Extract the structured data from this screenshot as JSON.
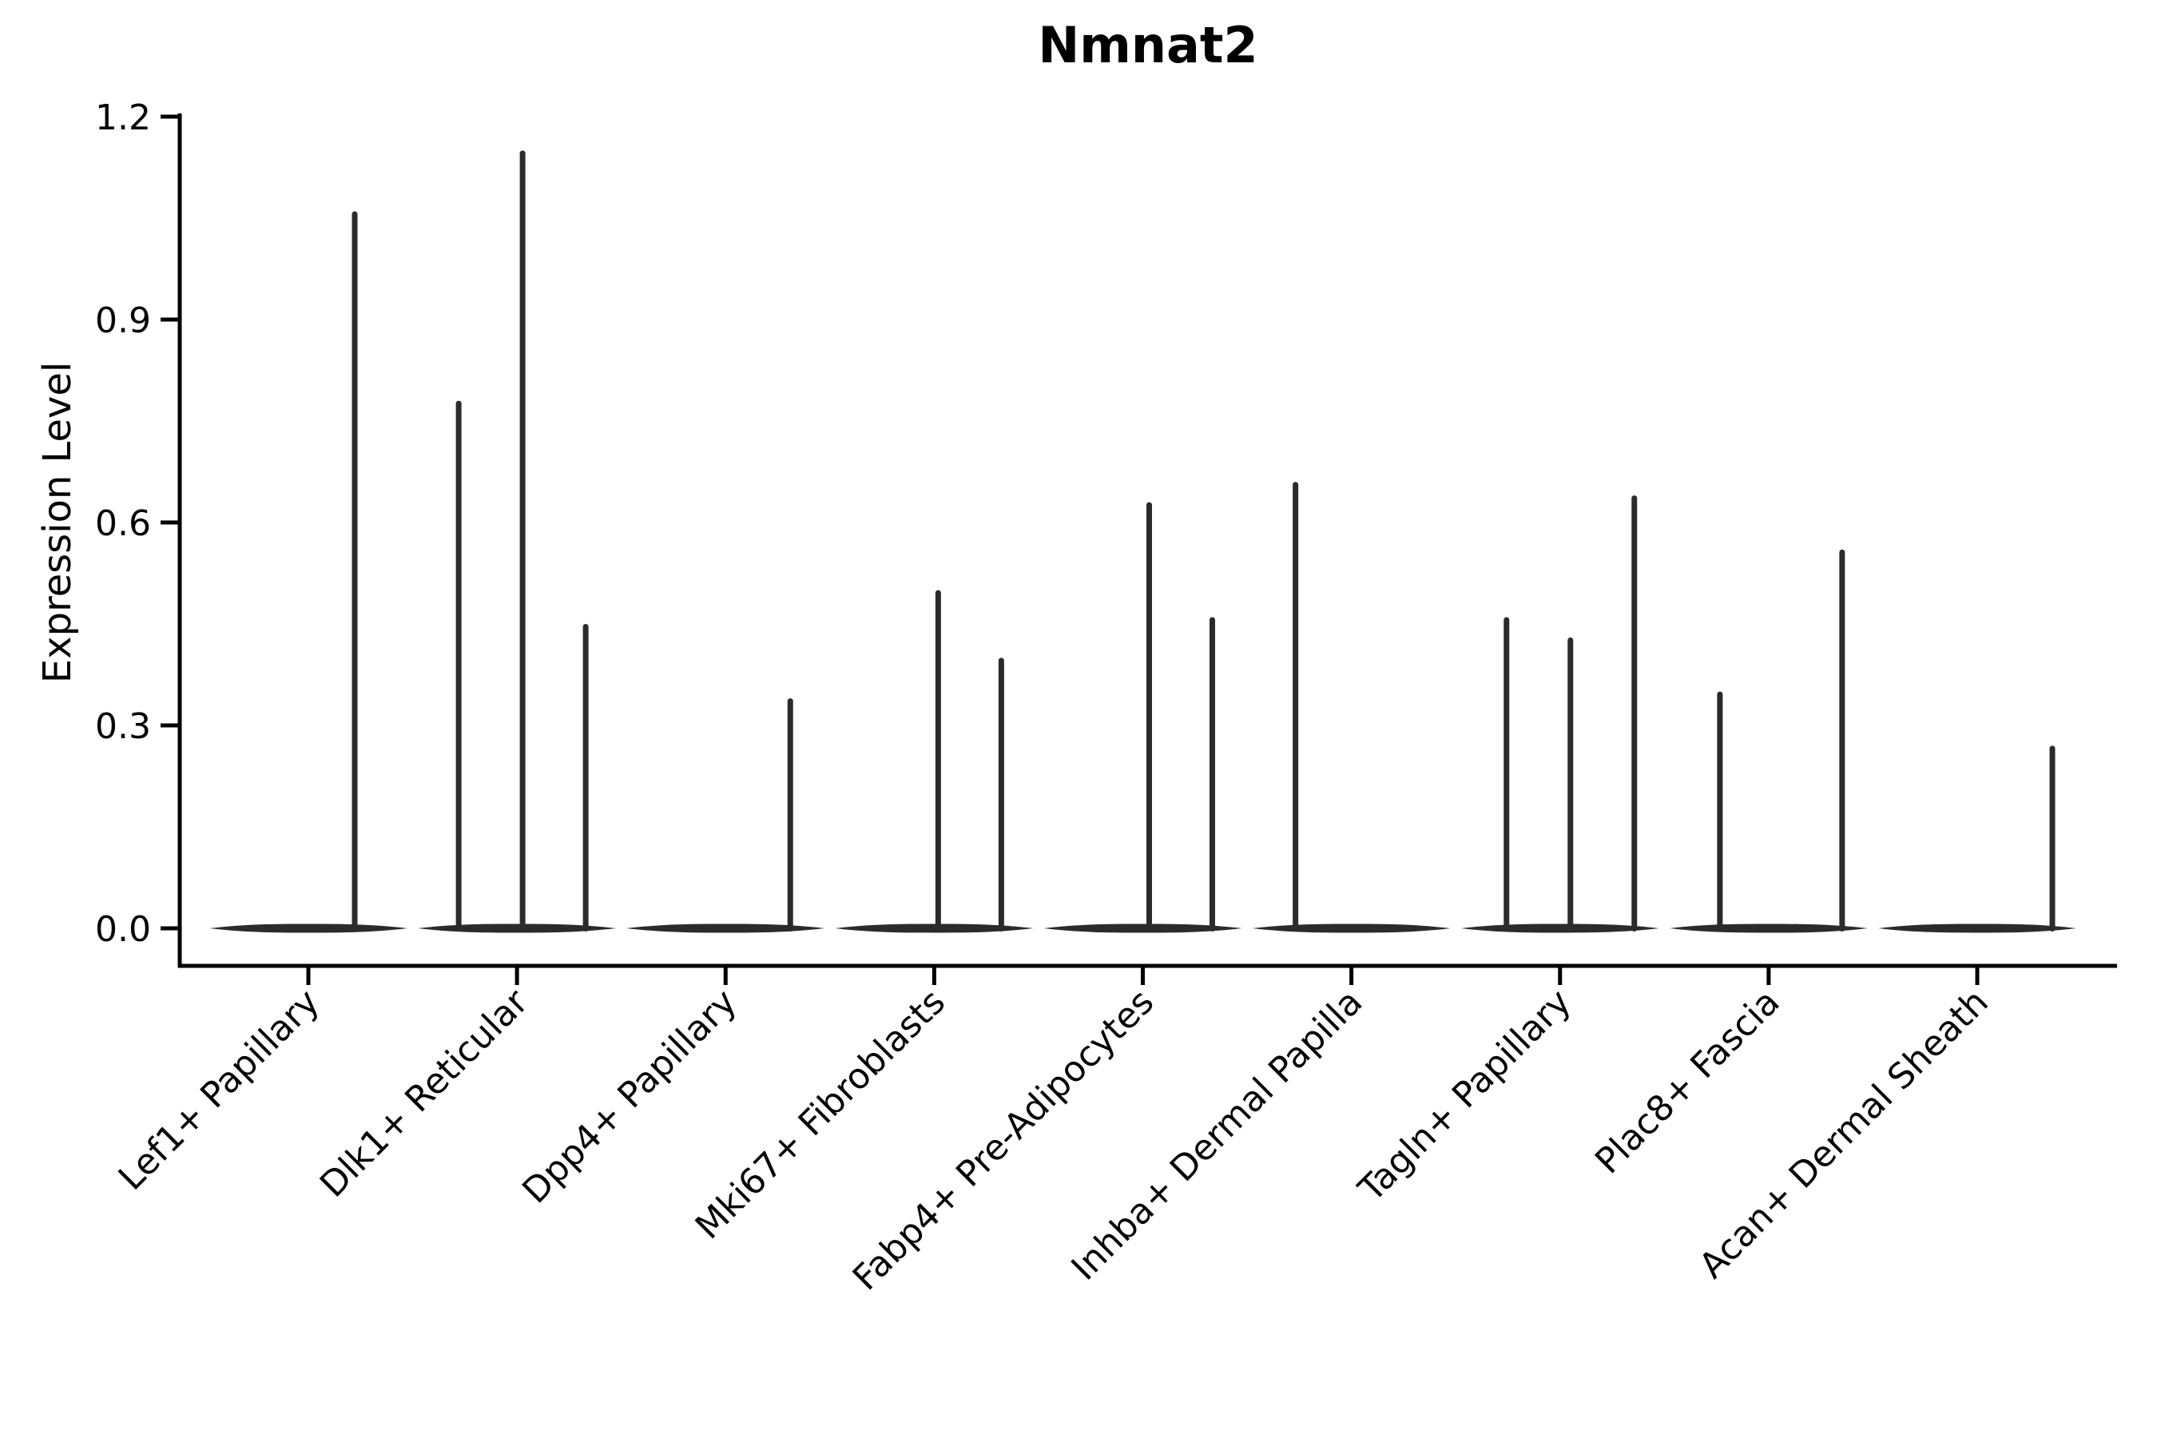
{
  "chart_data": {
    "type": "violin",
    "title": "Nmnat2",
    "ylabel": "Expression Level",
    "xlabel": "",
    "ylim": [
      0.0,
      1.2
    ],
    "y_ticks": [
      0.0,
      0.3,
      0.6,
      0.9,
      1.2
    ],
    "y_tick_labels": [
      "0.0",
      "0.3",
      "0.6",
      "0.9",
      "1.2"
    ],
    "grid": "off",
    "legend": "none",
    "categories": [
      "Lef1+ Papillary",
      "Dlk1+ Reticular",
      "Dpp4+ Papillary",
      "Mki67+ Fibroblasts",
      "Fabp4+ Pre-Adipocytes",
      "Inhba+ Dermal Papilla",
      "Tagln+ Papillary",
      "Plac8+ Fascia",
      "Acan+ Dermal Sheath"
    ],
    "series": [
      {
        "name": "Lef1+ Papillary",
        "body_value": 0.0,
        "spikes": [
          {
            "dx": 58,
            "value": 1.06
          }
        ]
      },
      {
        "name": "Dlk1+ Reticular",
        "body_value": 0.0,
        "spikes": [
          {
            "dx": -73,
            "value": 0.78
          },
          {
            "dx": 7,
            "value": 1.15
          },
          {
            "dx": 86,
            "value": 0.45
          }
        ]
      },
      {
        "name": "Dpp4+ Papillary",
        "body_value": 0.0,
        "spikes": [
          {
            "dx": 81,
            "value": 0.34
          }
        ]
      },
      {
        "name": "Mki67+ Fibroblasts",
        "body_value": 0.0,
        "spikes": [
          {
            "dx": 5,
            "value": 0.5
          },
          {
            "dx": 84,
            "value": 0.4
          }
        ]
      },
      {
        "name": "Fabp4+ Pre-Adipocytes",
        "body_value": 0.0,
        "spikes": [
          {
            "dx": 8,
            "value": 0.63
          },
          {
            "dx": 87,
            "value": 0.46
          }
        ]
      },
      {
        "name": "Inhba+ Dermal Papilla",
        "body_value": 0.0,
        "spikes": [
          {
            "dx": -70,
            "value": 0.66
          }
        ]
      },
      {
        "name": "Tagln+ Papillary",
        "body_value": 0.0,
        "spikes": [
          {
            "dx": -67,
            "value": 0.46
          },
          {
            "dx": 13,
            "value": 0.43
          },
          {
            "dx": 93,
            "value": 0.64
          }
        ]
      },
      {
        "name": "Plac8+ Fascia",
        "body_value": 0.0,
        "spikes": [
          {
            "dx": -61,
            "value": 0.35
          },
          {
            "dx": 92,
            "value": 0.56
          }
        ]
      },
      {
        "name": "Acan+ Dermal Sheath",
        "body_value": 0.0,
        "spikes": [
          {
            "dx": 94,
            "value": 0.27
          }
        ]
      }
    ],
    "colors": {
      "violin": "#2b2b2b",
      "axis": "#000000",
      "text": "#000000",
      "background": "#ffffff"
    }
  }
}
